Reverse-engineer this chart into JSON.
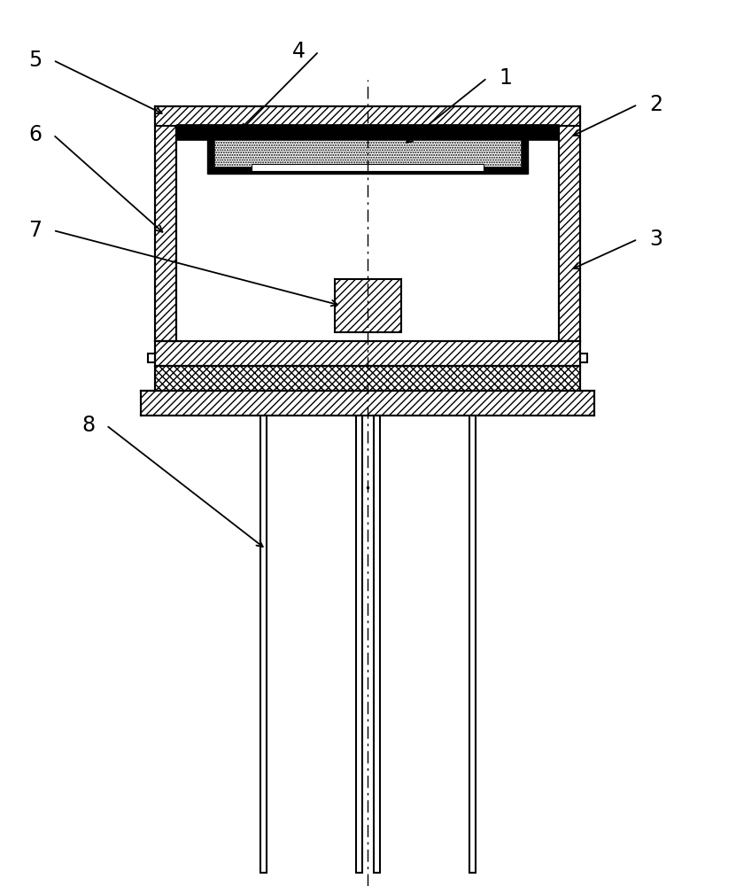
{
  "bg_color": "#ffffff",
  "line_color": "#000000",
  "figsize": [
    8.31,
    10.0
  ],
  "dpi": 100
}
